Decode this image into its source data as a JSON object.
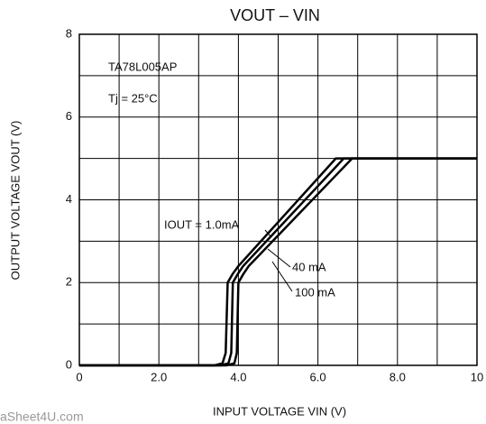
{
  "chart_data": {
    "type": "line",
    "title": "VOUT – VIN",
    "x_label": "INPUT VOLTAGE  VIN  (V)",
    "y_label": "OUTPUT VOLTAGE  VOUT  (V)",
    "annotations": [
      "TA78L005AP",
      "Tj = 25°C"
    ],
    "watermark": "aSheet4U.com",
    "xlim": [
      0,
      10
    ],
    "ylim": [
      0,
      8
    ],
    "xticks": [
      0,
      {
        "value": 2,
        "label": "2.0"
      },
      {
        "value": 4,
        "label": "4.0"
      },
      {
        "value": 6,
        "label": "6.0"
      },
      {
        "value": 8,
        "label": "8.0"
      },
      10
    ],
    "yticks": [
      0,
      2,
      4,
      6,
      8
    ],
    "xminor_ticks": [
      1,
      3,
      5,
      7,
      9
    ],
    "yminor_ticks": [
      1,
      3,
      5,
      7
    ],
    "grid": true,
    "series": [
      {
        "name": "IOUT = 1.0mA",
        "color": "#000000",
        "x": [
          0,
          3.4,
          3.6,
          3.68,
          3.73,
          3.85,
          4.0,
          6.45,
          10
        ],
        "values": [
          0,
          0,
          0.05,
          0.3,
          2.0,
          2.2,
          2.4,
          5.0,
          5.0
        ]
      },
      {
        "name": "40 mA",
        "color": "#000000",
        "x": [
          0,
          3.55,
          3.75,
          3.82,
          3.86,
          3.98,
          4.12,
          6.65,
          10
        ],
        "values": [
          0,
          0,
          0.05,
          0.3,
          2.0,
          2.2,
          2.4,
          5.0,
          5.0
        ]
      },
      {
        "name": "100 mA",
        "color": "#000000",
        "x": [
          0,
          3.7,
          3.9,
          3.96,
          4.0,
          4.12,
          4.26,
          6.86,
          10
        ],
        "values": [
          0,
          0,
          0.05,
          0.3,
          2.0,
          2.2,
          2.4,
          5.0,
          5.0
        ]
      }
    ]
  }
}
